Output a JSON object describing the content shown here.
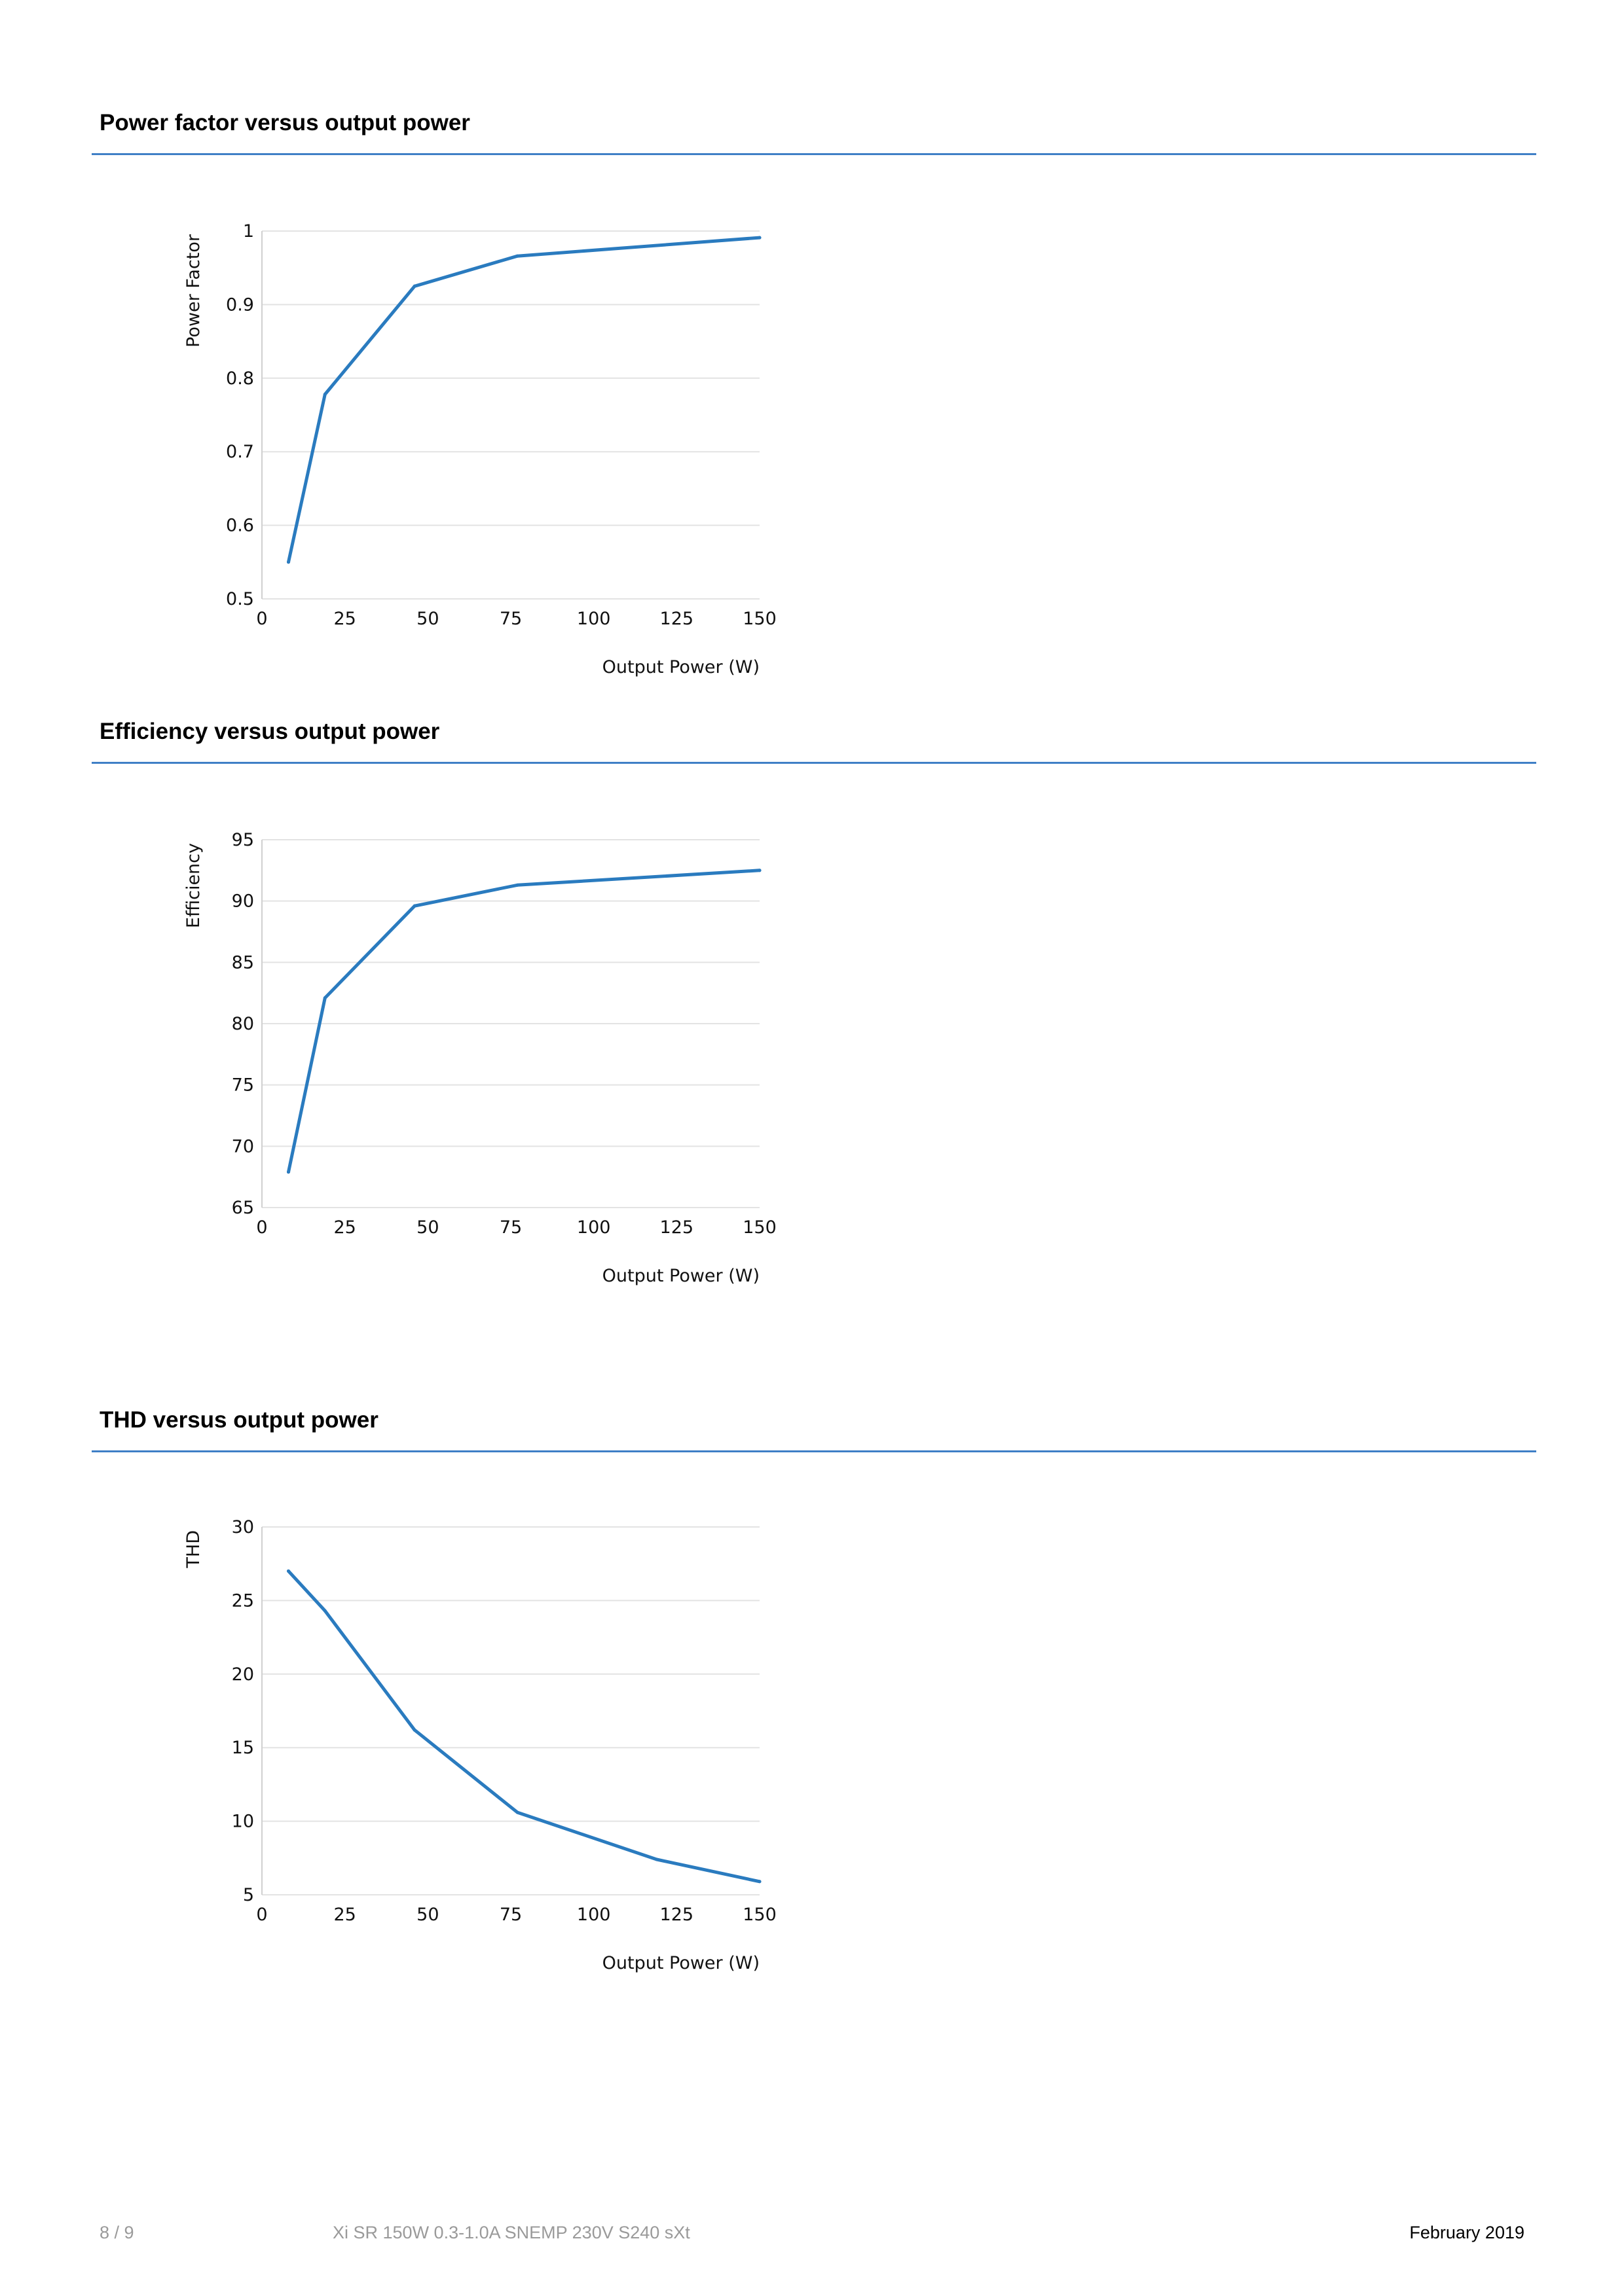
{
  "sections": [
    {
      "title": "Power factor versus output power"
    },
    {
      "title": "Efficiency versus output power"
    },
    {
      "title": "THD versus output power"
    }
  ],
  "colors": {
    "rule": "#3f7fc6",
    "line": "#2a7bbf",
    "grid": "#e3e3e3"
  },
  "chart_data": [
    {
      "type": "line",
      "title": "",
      "xlabel": "Output Power (W)",
      "ylabel": "Power Factor",
      "xlim": [
        0,
        150
      ],
      "ylim": [
        0.5,
        1
      ],
      "xticks": [
        "0",
        "25",
        "50",
        "75",
        "100",
        "125",
        "150"
      ],
      "yticks": [
        "1",
        "0.9",
        "0.8",
        "0.7",
        "0.6",
        "0.5"
      ],
      "grid": true,
      "series": [
        {
          "x": [
            8,
            19,
            46,
            77,
            150
          ],
          "y": [
            0.55,
            0.778,
            0.925,
            0.966,
            0.991
          ]
        }
      ]
    },
    {
      "type": "line",
      "title": "",
      "xlabel": "Output Power (W)",
      "ylabel": "Efficiency",
      "xlim": [
        0,
        150
      ],
      "ylim": [
        65,
        95
      ],
      "xticks": [
        "0",
        "25",
        "50",
        "75",
        "100",
        "125",
        "150"
      ],
      "yticks": [
        "95",
        "90",
        "85",
        "80",
        "75",
        "70",
        "65"
      ],
      "grid": true,
      "series": [
        {
          "x": [
            8,
            19,
            46,
            77,
            150
          ],
          "y": [
            67.9,
            82.1,
            89.6,
            91.3,
            92.5
          ]
        }
      ]
    },
    {
      "type": "line",
      "title": "",
      "xlabel": "Output Power (W)",
      "ylabel": "THD",
      "xlim": [
        0,
        150
      ],
      "ylim": [
        5,
        30
      ],
      "xticks": [
        "0",
        "25",
        "50",
        "75",
        "100",
        "125",
        "150"
      ],
      "yticks": [
        "30",
        "25",
        "20",
        "15",
        "10",
        "5"
      ],
      "grid": true,
      "series": [
        {
          "x": [
            8,
            19,
            46,
            77,
            119,
            150
          ],
          "y": [
            27.0,
            24.3,
            16.2,
            10.6,
            7.4,
            5.9
          ]
        }
      ]
    }
  ],
  "footer": {
    "page": "8 / 9",
    "product": "Xi SR 150W 0.3-1.0A SNEMP 230V S240 sXt",
    "date": "February 2019"
  }
}
